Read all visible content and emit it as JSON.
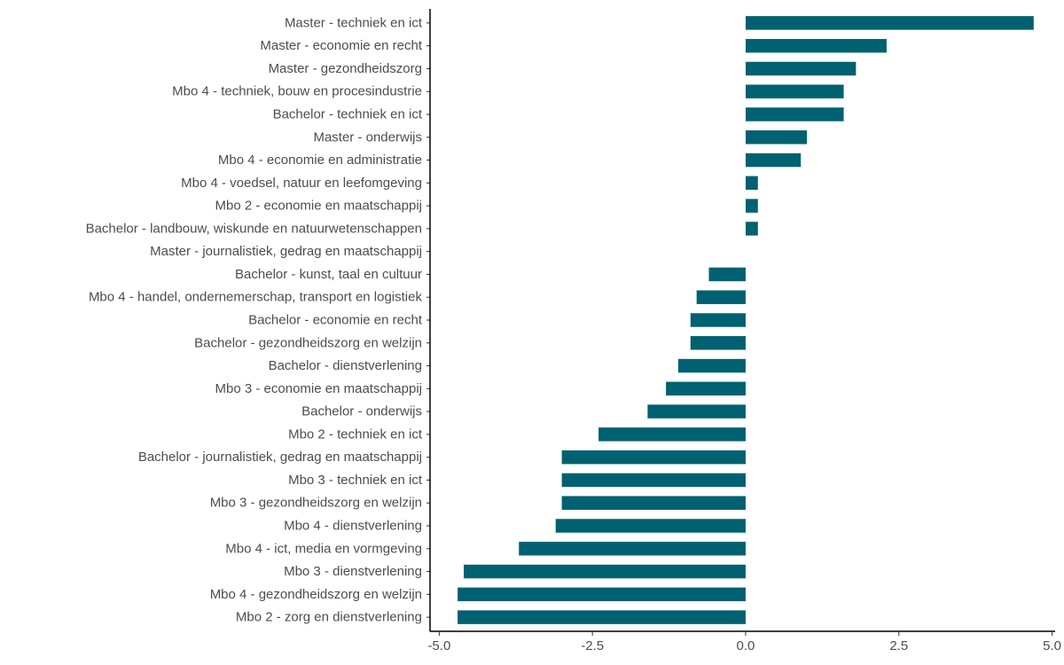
{
  "chart_data": {
    "type": "bar",
    "orientation": "horizontal",
    "title": "",
    "xlabel": "",
    "ylabel": "",
    "xlim": [
      -5.15,
      5.05
    ],
    "xticks": [
      -5.0,
      -2.5,
      0.0,
      2.5,
      5.0
    ],
    "xtick_labels": [
      "-5.0",
      "-2.5",
      "0.0",
      "2.5",
      "5.0"
    ],
    "grid": false,
    "legend": "none",
    "bar_color": "#006170",
    "categories": [
      "Master - techniek en ict",
      "Master - economie en recht",
      "Master - gezondheidszorg",
      "Mbo 4 - techniek, bouw en procesindustrie",
      "Bachelor - techniek en ict",
      "Master - onderwijs",
      "Mbo 4 - economie en administratie",
      "Mbo 4 - voedsel, natuur en leefomgeving",
      "Mbo 2 - economie en maatschappij",
      "Bachelor - landbouw, wiskunde en natuurwetenschappen",
      "Master - journalistiek, gedrag en maatschappij",
      "Bachelor - kunst, taal en cultuur",
      "Mbo 4 - handel, ondernemerschap, transport en logistiek",
      "Bachelor - economie en recht",
      "Bachelor - gezondheidszorg en welzijn",
      "Bachelor - dienstverlening",
      "Mbo 3 - economie en maatschappij",
      "Bachelor - onderwijs",
      "Mbo 2 - techniek en ict",
      "Bachelor - journalistiek, gedrag en maatschappij",
      "Mbo 3 - techniek en ict",
      "Mbo 3 - gezondheidszorg en welzijn",
      "Mbo 4 - dienstverlening",
      "Mbo 4 - ict, media en vormgeving",
      "Mbo 3 - dienstverlening",
      "Mbo 4 - gezondheidszorg en welzijn",
      "Mbo 2 - zorg en dienstverlening"
    ],
    "values": [
      4.7,
      2.3,
      1.8,
      1.6,
      1.6,
      1.0,
      0.9,
      0.2,
      0.2,
      0.2,
      0.0,
      -0.6,
      -0.8,
      -0.9,
      -0.9,
      -1.1,
      -1.3,
      -1.6,
      -2.4,
      -3.0,
      -3.0,
      -3.0,
      -3.1,
      -3.7,
      -4.6,
      -4.7,
      -4.7
    ]
  }
}
